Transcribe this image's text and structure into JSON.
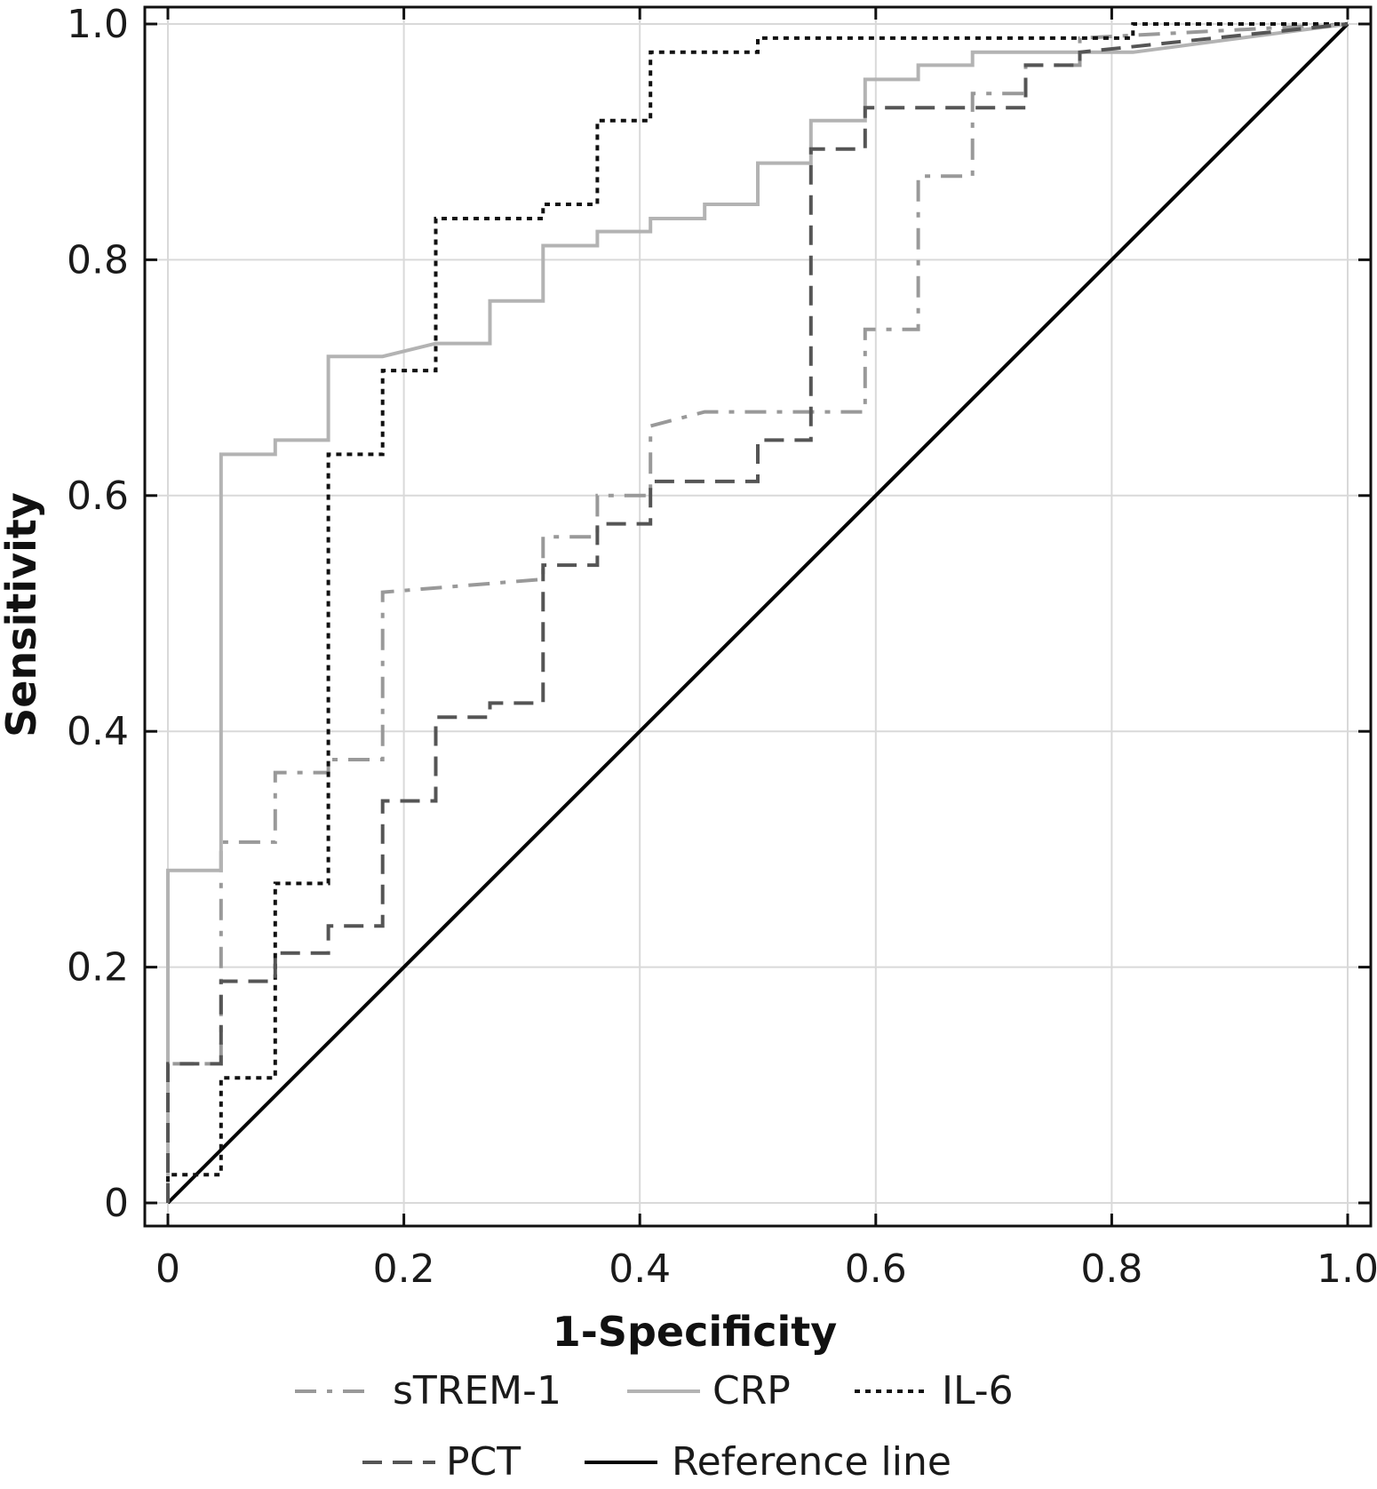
{
  "chart_data": {
    "type": "line",
    "title": "",
    "xlabel": "1-Specificity",
    "ylabel": "Sensitivity",
    "xlim": [
      0,
      1
    ],
    "ylim": [
      0,
      1
    ],
    "grid": true,
    "legend_position": "bottom",
    "x_ticks": [
      0,
      0.2,
      0.4,
      0.6,
      0.8,
      1.0
    ],
    "y_ticks": [
      0,
      0.2,
      0.4,
      0.6,
      0.8,
      1.0
    ],
    "x_tick_labels": [
      "0",
      "0.2",
      "0.4",
      "0.6",
      "0.8",
      "1.0"
    ],
    "y_tick_labels": [
      "0",
      "0.2",
      "0.4",
      "0.6",
      "0.8",
      "1.0"
    ],
    "series": [
      {
        "name": "sTREM-1",
        "color": "#999999",
        "dash": "dashdot",
        "points": [
          [
            0,
            0
          ],
          [
            0,
            0.118
          ],
          [
            0.045,
            0.118
          ],
          [
            0.045,
            0.306
          ],
          [
            0.091,
            0.306
          ],
          [
            0.091,
            0.365
          ],
          [
            0.136,
            0.365
          ],
          [
            0.136,
            0.376
          ],
          [
            0.182,
            0.376
          ],
          [
            0.182,
            0.518
          ],
          [
            0.318,
            0.529
          ],
          [
            0.318,
            0.565
          ],
          [
            0.364,
            0.565
          ],
          [
            0.364,
            0.6
          ],
          [
            0.409,
            0.6
          ],
          [
            0.409,
            0.659
          ],
          [
            0.455,
            0.671
          ],
          [
            0.591,
            0.671
          ],
          [
            0.591,
            0.741
          ],
          [
            0.636,
            0.741
          ],
          [
            0.636,
            0.871
          ],
          [
            0.682,
            0.871
          ],
          [
            0.682,
            0.941
          ],
          [
            0.727,
            0.941
          ],
          [
            0.727,
            0.965
          ],
          [
            0.773,
            0.965
          ],
          [
            0.773,
            0.988
          ],
          [
            1.0,
            1.0
          ]
        ]
      },
      {
        "name": "CRP",
        "color": "#b3b3b3",
        "dash": "solid",
        "points": [
          [
            0,
            0
          ],
          [
            0,
            0.282
          ],
          [
            0.045,
            0.282
          ],
          [
            0.045,
            0.635
          ],
          [
            0.091,
            0.635
          ],
          [
            0.091,
            0.647
          ],
          [
            0.136,
            0.647
          ],
          [
            0.136,
            0.718
          ],
          [
            0.182,
            0.718
          ],
          [
            0.227,
            0.729
          ],
          [
            0.273,
            0.729
          ],
          [
            0.273,
            0.765
          ],
          [
            0.318,
            0.765
          ],
          [
            0.318,
            0.812
          ],
          [
            0.364,
            0.812
          ],
          [
            0.364,
            0.824
          ],
          [
            0.409,
            0.824
          ],
          [
            0.409,
            0.835
          ],
          [
            0.455,
            0.835
          ],
          [
            0.455,
            0.847
          ],
          [
            0.5,
            0.847
          ],
          [
            0.5,
            0.882
          ],
          [
            0.545,
            0.882
          ],
          [
            0.545,
            0.918
          ],
          [
            0.591,
            0.918
          ],
          [
            0.591,
            0.953
          ],
          [
            0.636,
            0.953
          ],
          [
            0.636,
            0.965
          ],
          [
            0.682,
            0.965
          ],
          [
            0.682,
            0.976
          ],
          [
            0.818,
            0.976
          ],
          [
            1.0,
            1.0
          ]
        ]
      },
      {
        "name": "IL-6",
        "color": "#111111",
        "dash": "dotted",
        "points": [
          [
            0,
            0
          ],
          [
            0,
            0.024
          ],
          [
            0.045,
            0.024
          ],
          [
            0.045,
            0.106
          ],
          [
            0.091,
            0.106
          ],
          [
            0.091,
            0.271
          ],
          [
            0.136,
            0.271
          ],
          [
            0.136,
            0.635
          ],
          [
            0.182,
            0.635
          ],
          [
            0.182,
            0.706
          ],
          [
            0.227,
            0.706
          ],
          [
            0.227,
            0.835
          ],
          [
            0.318,
            0.835
          ],
          [
            0.318,
            0.847
          ],
          [
            0.364,
            0.847
          ],
          [
            0.364,
            0.918
          ],
          [
            0.409,
            0.918
          ],
          [
            0.409,
            0.976
          ],
          [
            0.5,
            0.976
          ],
          [
            0.5,
            0.988
          ],
          [
            0.818,
            0.988
          ],
          [
            0.818,
            1.0
          ],
          [
            1.0,
            1.0
          ]
        ]
      },
      {
        "name": "PCT",
        "color": "#555555",
        "dash": "dashed",
        "points": [
          [
            0,
            0
          ],
          [
            0,
            0.118
          ],
          [
            0.045,
            0.118
          ],
          [
            0.045,
            0.188
          ],
          [
            0.091,
            0.188
          ],
          [
            0.091,
            0.212
          ],
          [
            0.136,
            0.212
          ],
          [
            0.136,
            0.235
          ],
          [
            0.182,
            0.235
          ],
          [
            0.182,
            0.341
          ],
          [
            0.227,
            0.341
          ],
          [
            0.227,
            0.412
          ],
          [
            0.273,
            0.412
          ],
          [
            0.273,
            0.424
          ],
          [
            0.318,
            0.424
          ],
          [
            0.318,
            0.541
          ],
          [
            0.364,
            0.541
          ],
          [
            0.364,
            0.576
          ],
          [
            0.409,
            0.576
          ],
          [
            0.409,
            0.612
          ],
          [
            0.5,
            0.612
          ],
          [
            0.5,
            0.647
          ],
          [
            0.545,
            0.647
          ],
          [
            0.545,
            0.882
          ],
          [
            0.545,
            0.894
          ],
          [
            0.591,
            0.894
          ],
          [
            0.591,
            0.929
          ],
          [
            0.727,
            0.929
          ],
          [
            0.727,
            0.965
          ],
          [
            0.773,
            0.965
          ],
          [
            0.773,
            0.976
          ],
          [
            1.0,
            1.0
          ]
        ]
      },
      {
        "name": "Reference line",
        "color": "#000000",
        "dash": "solid",
        "points": [
          [
            0,
            0
          ],
          [
            1,
            1
          ]
        ]
      }
    ]
  }
}
